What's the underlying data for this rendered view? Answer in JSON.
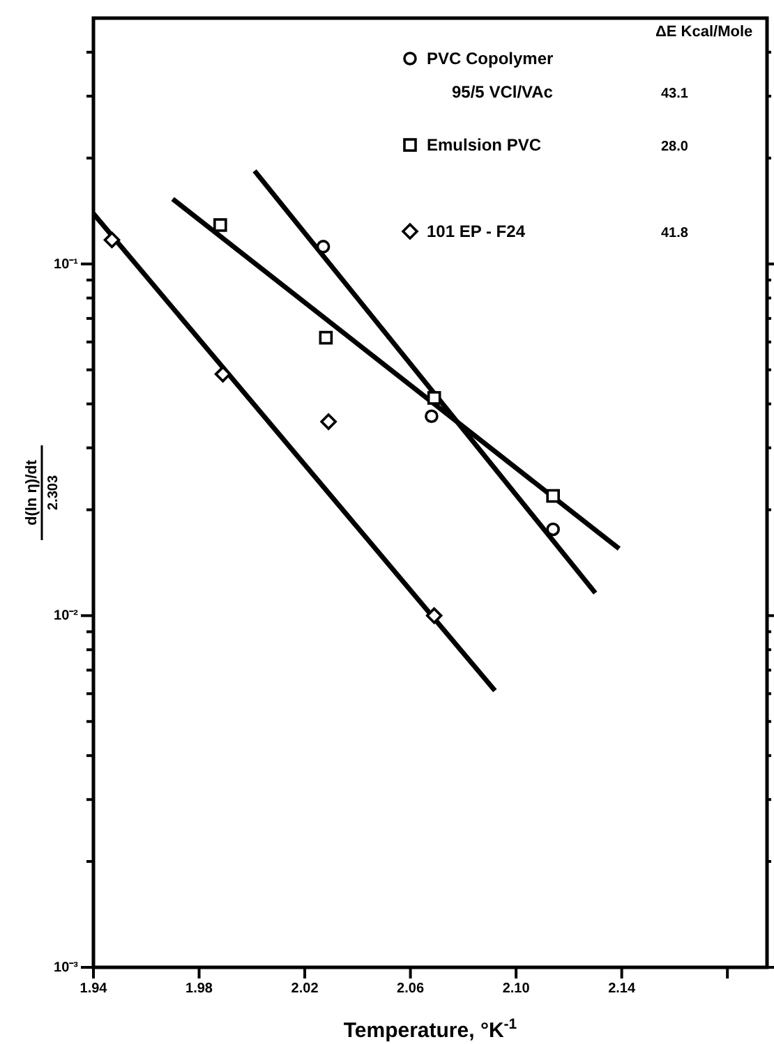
{
  "chart_data": {
    "type": "scatter",
    "xlabel": "Temperature, °K$^{-1}$",
    "ylabel": "d(ln η)/dt\n2.303",
    "log": "y",
    "legend": "top right",
    "xlim": [
      1.94,
      2.195
    ],
    "ylim": [
      0.001,
      0.5
    ],
    "xticks": [
      1.94,
      1.98,
      2.02,
      2.06,
      {
        "value": 2.1,
        "label": "2.10"
      },
      2.14,
      {
        "value": 2.18,
        "label": null
      }
    ],
    "yticks": [
      {
        "value": 0.001,
        "label": "10⁻³"
      },
      {
        "value": 0.002,
        "label": null
      },
      {
        "value": 0.003,
        "label": null
      },
      {
        "value": 0.004,
        "label": null
      },
      {
        "value": 0.005,
        "label": null
      },
      {
        "value": 0.006,
        "label": null
      },
      {
        "value": 0.007,
        "label": null
      },
      {
        "value": 0.008,
        "label": null
      },
      {
        "value": 0.009,
        "label": null
      },
      {
        "value": 0.01,
        "label": "10⁻²"
      },
      {
        "value": 0.02,
        "label": null
      },
      {
        "value": 0.03,
        "label": null
      },
      {
        "value": 0.04,
        "label": null
      },
      {
        "value": 0.05,
        "label": null
      },
      {
        "value": 0.06,
        "label": null
      },
      {
        "value": 0.07,
        "label": null
      },
      {
        "value": 0.08,
        "label": null
      },
      {
        "value": 0.09,
        "label": null
      },
      {
        "value": 0.1,
        "label": "10⁻¹"
      },
      {
        "value": 0.2,
        "label": null
      },
      {
        "value": 0.3,
        "label": null
      },
      {
        "value": 0.4,
        "label": null
      }
    ],
    "annotations": [
      "ΔE Kcal/Mole",
      "43.1",
      "28.0",
      "41.8"
    ],
    "series": [
      {
        "type": "line",
        "color": "#000000",
        "marker": "none",
        "x": [
          2.001,
          2.13
        ],
        "values": [
          0.184,
          0.0116
        ]
      },
      {
        "type": "line",
        "color": "#000000",
        "marker": "none",
        "x": [
          1.97,
          2.139
        ],
        "values": [
          0.153,
          0.0155
        ]
      },
      {
        "type": "line",
        "color": "#000000",
        "marker": "none",
        "x": [
          1.94,
          2.092
        ],
        "values": [
          0.139,
          0.00612
        ]
      },
      {
        "name": "PVC Copolymer 95/5 VCl/VAc",
        "color": "#000000",
        "marker": "circle",
        "x": [
          2.027,
          2.068,
          2.114
        ],
        "values": [
          0.112,
          0.0369,
          0.0176
        ]
      },
      {
        "name": "Emulsion PVC",
        "color": "#000000",
        "marker": "square",
        "x": [
          1.988,
          2.028,
          2.069,
          2.114
        ],
        "values": [
          0.129,
          0.0617,
          0.0416,
          0.0219
        ]
      },
      {
        "name": "101 EP - F24",
        "color": "#000000",
        "marker": "diamond",
        "x": [
          1.947,
          1.989,
          2.029,
          2.069
        ],
        "values": [
          0.117,
          0.0486,
          0.0356,
          0.01
        ]
      }
    ]
  }
}
